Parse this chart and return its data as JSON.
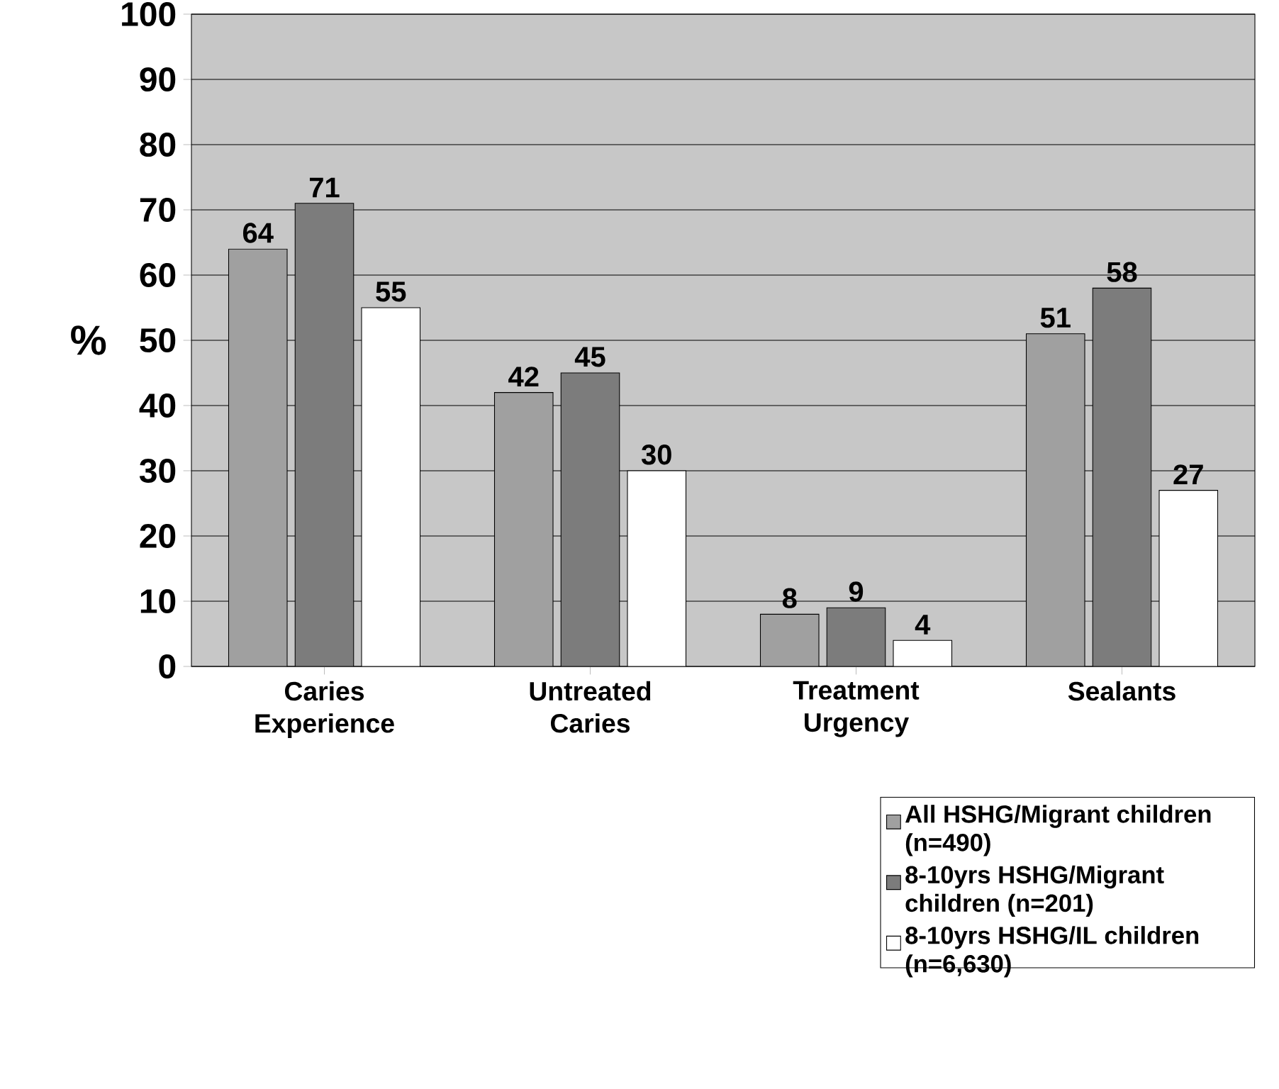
{
  "chart_data": {
    "type": "bar",
    "ylabel": "%",
    "categories": [
      "Caries Experience",
      "Untreated Caries",
      "Treatment Urgency",
      "Sealants"
    ],
    "series": [
      {
        "name": "All HSHG/Migrant children (n=490)",
        "color": "#a0a0a0",
        "values": [
          64,
          42,
          8,
          51
        ]
      },
      {
        "name": "8-10yrs HSHG/Migrant children (n=201)",
        "color": "#7c7c7c",
        "values": [
          71,
          45,
          9,
          58
        ]
      },
      {
        "name": "8-10yrs HSHG/IL children (n=6,630)",
        "color": "#ffffff",
        "values": [
          55,
          30,
          4,
          27
        ]
      }
    ],
    "ylim": [
      0,
      100
    ],
    "yticks": [
      0,
      10,
      20,
      30,
      40,
      50,
      60,
      70,
      80,
      90,
      100
    ],
    "grid": "y",
    "data_labels": true,
    "legend": "bottom right"
  }
}
